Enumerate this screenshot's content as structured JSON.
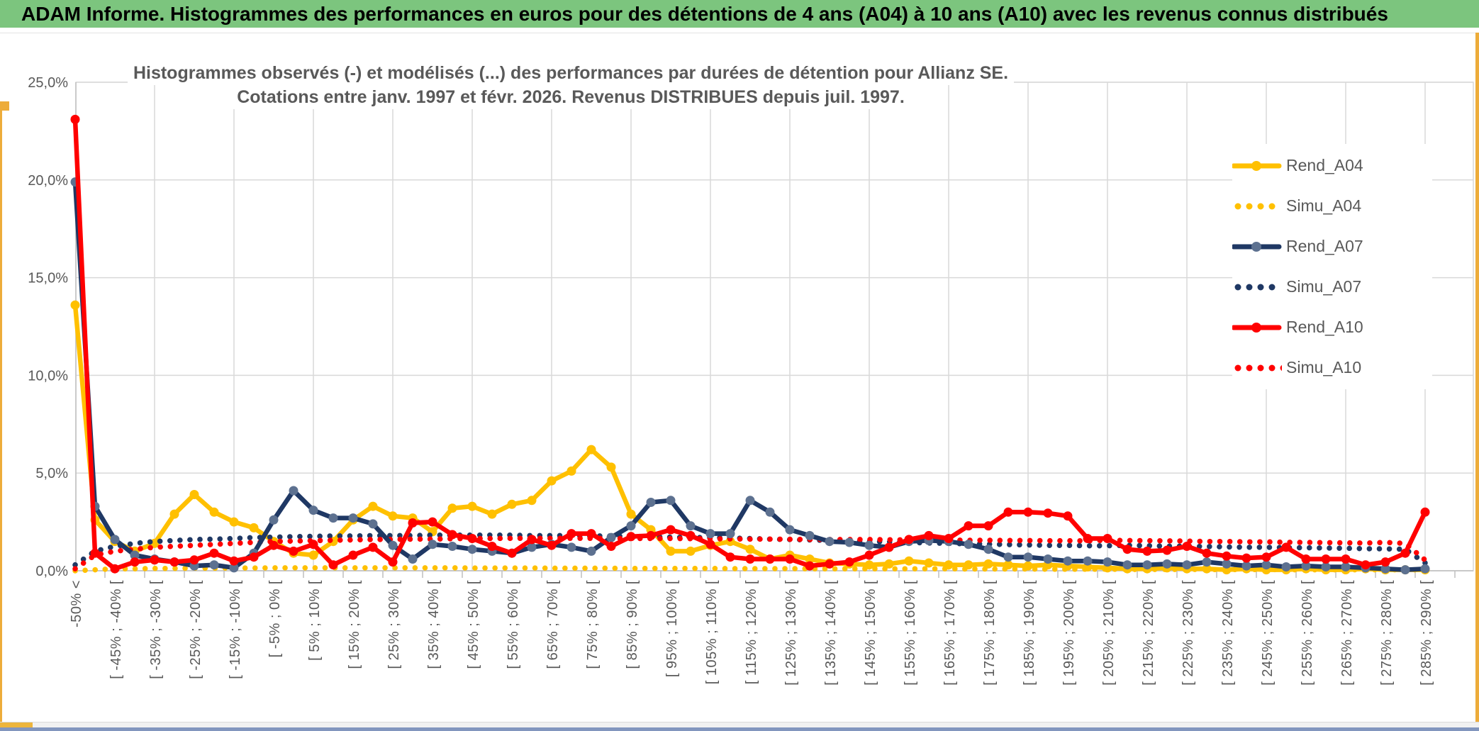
{
  "header": {
    "title": "ADAM Informe. Histogrammes des performances en euros pour des détentions de 4 ans (A04) à 10 ans (A10) avec les revenus connus distribués"
  },
  "colors": {
    "header_bg": "#7CC57E",
    "header_text": "#000000",
    "accent_gold": "#EDAC3A",
    "scroll_thumb_gold": "#EDB53C",
    "bottom_bar": "#8296BE",
    "grid": "#D9D9D9",
    "axis": "#BFBFBF",
    "text_gray": "#595959",
    "gold": "#FFC000",
    "navy": "#1F3864",
    "navy_marker": "#5D7190",
    "red": "#FF0000"
  },
  "chart_data": {
    "type": "line",
    "title_line1": "Histogrammes observés (-) et modélisés (...) des performances par durées de détention pour Allianz SE.",
    "title_line2": "Cotations entre janv. 1997 et févr. 2026. Revenus DISTRIBUES depuis juil. 1997.",
    "grid": true,
    "legend_position": "right-inside",
    "y_axis": {
      "min": 0,
      "max": 25,
      "tick_labels": [
        "25,0%",
        "20,0%",
        "15,0%",
        "10,0%",
        "5,0%",
        "0,0%"
      ]
    },
    "x_axis": {
      "n_bins": 69,
      "label_every_n_bins": 2,
      "tick_labels": [
        "-50% <",
        "[ -45% ; -40% [",
        "[ -35% ; -30% [",
        "[ -25% ; -20% [",
        "[ -15% ; -10% [",
        "[ -5% ; 0% [",
        "[ 5% ; 10% [",
        "[ 15% ; 20% [",
        "[ 25% ; 30% [",
        "[ 35% ; 40% [",
        "[ 45% ; 50% [",
        "[ 55% ; 60% [",
        "[ 65% ; 70% [",
        "[ 75% ; 80% [",
        "[ 85% ; 90% [",
        "[ 95% ; 100% [",
        "[ 105% ; 110% [",
        "[ 115% ; 120% [",
        "[ 125% ; 130% [",
        "[ 135% ; 140% [",
        "[ 145% ; 150% [",
        "[ 155% ; 160% [",
        "[ 165% ; 170% [",
        "[ 175% ; 180% [",
        "[ 185% ; 190% [",
        "[ 195% ; 200% [",
        "[ 205% ; 210% [",
        "[ 215% ; 220% [",
        "[ 225% ; 230% [",
        "[ 235% ; 240% [",
        "[ 245% ; 250% [",
        "[ 255% ; 260% [",
        "[ 265% ; 270% [",
        "[ 275% ; 280% [",
        "[ 285% ; 290% ["
      ]
    },
    "series": [
      {
        "name": "Rend_A04",
        "style": "solid",
        "color": "#FFC000",
        "marker_color": "#FFC000",
        "legend_dots": 0,
        "values": [
          13.6,
          2.6,
          1.5,
          1.0,
          1.4,
          2.9,
          3.9,
          3.0,
          2.5,
          2.2,
          1.5,
          0.9,
          0.8,
          1.5,
          2.6,
          3.3,
          2.8,
          2.7,
          2.0,
          3.2,
          3.3,
          2.9,
          3.4,
          3.6,
          4.6,
          5.1,
          6.2,
          5.3,
          2.9,
          2.1,
          1.0,
          1.0,
          1.3,
          1.5,
          1.1,
          0.6,
          0.8,
          0.6,
          0.4,
          0.35,
          0.3,
          0.35,
          0.5,
          0.4,
          0.3,
          0.3,
          0.35,
          0.3,
          0.25,
          0.3,
          0.25,
          0.2,
          0.15,
          0.1,
          0.1,
          0.15,
          0.1,
          0.1,
          0.05,
          0.1,
          0.05,
          0.05,
          0.1,
          0.05,
          0.05,
          0.1,
          0.05,
          0.05,
          0.05
        ]
      },
      {
        "name": "Simu_A04",
        "style": "dotted",
        "color": "#FFC000",
        "marker_color": "#FFC000",
        "legend_dots": 4,
        "values": [
          0.0,
          0.05,
          0.1,
          0.1,
          0.12,
          0.12,
          0.13,
          0.13,
          0.14,
          0.14,
          0.15,
          0.15,
          0.15,
          0.15,
          0.15,
          0.15,
          0.15,
          0.15,
          0.15,
          0.15,
          0.14,
          0.14,
          0.14,
          0.14,
          0.13,
          0.13,
          0.13,
          0.13,
          0.12,
          0.12,
          0.12,
          0.12,
          0.12,
          0.11,
          0.11,
          0.11,
          0.11,
          0.1,
          0.1,
          0.1,
          0.1,
          0.1,
          0.1,
          0.1,
          0.1,
          0.09,
          0.09,
          0.09,
          0.09,
          0.08,
          0.08,
          0.08,
          0.08,
          0.07,
          0.07,
          0.07,
          0.07,
          0.06,
          0.06,
          0.06,
          0.06,
          0.05,
          0.05,
          0.05,
          0.05,
          0.05,
          0.05,
          0.05,
          0.05
        ]
      },
      {
        "name": "Rend_A07",
        "style": "solid",
        "color": "#1F3864",
        "marker_color": "#5D7190",
        "legend_dots": 0,
        "values": [
          19.9,
          3.3,
          1.6,
          0.8,
          0.6,
          0.45,
          0.25,
          0.3,
          0.15,
          0.9,
          2.6,
          4.1,
          3.1,
          2.7,
          2.7,
          2.4,
          1.3,
          0.6,
          1.35,
          1.25,
          1.1,
          1.0,
          0.9,
          1.2,
          1.35,
          1.2,
          1.0,
          1.7,
          2.3,
          3.5,
          3.6,
          2.3,
          1.9,
          1.9,
          3.6,
          3.0,
          2.1,
          1.8,
          1.5,
          1.45,
          1.3,
          1.2,
          1.5,
          1.55,
          1.5,
          1.35,
          1.1,
          0.7,
          0.7,
          0.6,
          0.5,
          0.5,
          0.45,
          0.3,
          0.3,
          0.35,
          0.3,
          0.45,
          0.35,
          0.25,
          0.3,
          0.2,
          0.25,
          0.2,
          0.2,
          0.15,
          0.1,
          0.05,
          0.1
        ]
      },
      {
        "name": "Simu_A07",
        "style": "dotted",
        "color": "#1F3864",
        "marker_color": "#1F3864",
        "legend_dots": 4,
        "values": [
          0.3,
          1.0,
          1.25,
          1.4,
          1.5,
          1.55,
          1.6,
          1.62,
          1.65,
          1.7,
          1.72,
          1.75,
          1.76,
          1.78,
          1.78,
          1.8,
          1.8,
          1.8,
          1.82,
          1.82,
          1.82,
          1.82,
          1.82,
          1.8,
          1.8,
          1.8,
          1.78,
          1.78,
          1.76,
          1.75,
          1.72,
          1.7,
          1.7,
          1.68,
          1.65,
          1.62,
          1.6,
          1.58,
          1.55,
          1.52,
          1.5,
          1.48,
          1.45,
          1.42,
          1.4,
          1.38,
          1.36,
          1.34,
          1.32,
          1.3,
          1.3,
          1.28,
          1.28,
          1.3,
          1.28,
          1.26,
          1.25,
          1.24,
          1.22,
          1.2,
          1.2,
          1.18,
          1.18,
          1.16,
          1.15,
          1.13,
          1.12,
          1.1,
          0.4
        ]
      },
      {
        "name": "Rend_A10",
        "style": "solid",
        "color": "#FF0000",
        "marker_color": "#FF0000",
        "legend_dots": 0,
        "values": [
          23.1,
          0.9,
          0.1,
          0.45,
          0.55,
          0.45,
          0.55,
          0.9,
          0.5,
          0.7,
          1.3,
          1.0,
          1.35,
          0.3,
          0.8,
          1.2,
          0.45,
          2.45,
          2.5,
          1.85,
          1.65,
          1.25,
          0.9,
          1.6,
          1.3,
          1.9,
          1.9,
          1.25,
          1.75,
          1.8,
          2.1,
          1.8,
          1.35,
          0.7,
          0.6,
          0.6,
          0.6,
          0.25,
          0.35,
          0.45,
          0.8,
          1.2,
          1.6,
          1.8,
          1.65,
          2.3,
          2.3,
          3.0,
          3.0,
          2.95,
          2.8,
          1.65,
          1.65,
          1.1,
          1.0,
          1.05,
          1.25,
          0.9,
          0.75,
          0.65,
          0.7,
          1.2,
          0.6,
          0.6,
          0.6,
          0.3,
          0.45,
          0.9,
          3.0
        ]
      },
      {
        "name": "Simu_A10",
        "style": "dotted",
        "color": "#FF0000",
        "marker_color": "#FF0000",
        "legend_dots": 5,
        "values": [
          0.1,
          0.8,
          1.0,
          1.1,
          1.2,
          1.25,
          1.3,
          1.35,
          1.4,
          1.45,
          1.5,
          1.52,
          1.54,
          1.56,
          1.58,
          1.6,
          1.6,
          1.62,
          1.62,
          1.64,
          1.65,
          1.65,
          1.66,
          1.66,
          1.66,
          1.66,
          1.66,
          1.65,
          1.65,
          1.65,
          1.65,
          1.64,
          1.64,
          1.63,
          1.62,
          1.62,
          1.61,
          1.6,
          1.6,
          1.6,
          1.6,
          1.59,
          1.58,
          1.58,
          1.57,
          1.56,
          1.56,
          1.55,
          1.55,
          1.54,
          1.54,
          1.53,
          1.56,
          1.55,
          1.54,
          1.53,
          1.52,
          1.5,
          1.5,
          1.48,
          1.48,
          1.46,
          1.45,
          1.44,
          1.43,
          1.42,
          1.45,
          1.4,
          0.55
        ]
      }
    ]
  }
}
